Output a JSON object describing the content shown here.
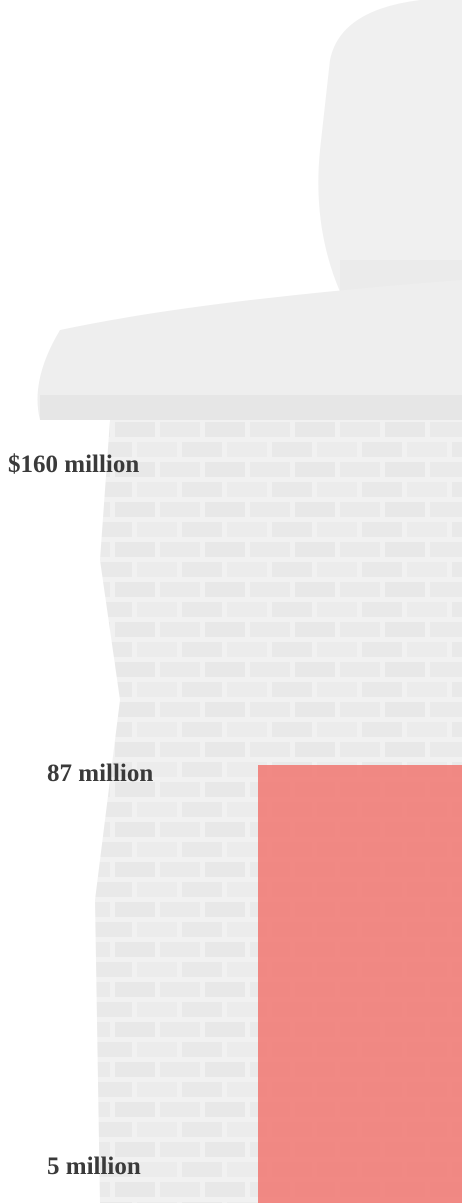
{
  "labels": [
    "$160 million",
    "87 million",
    "5 million"
  ]
}
